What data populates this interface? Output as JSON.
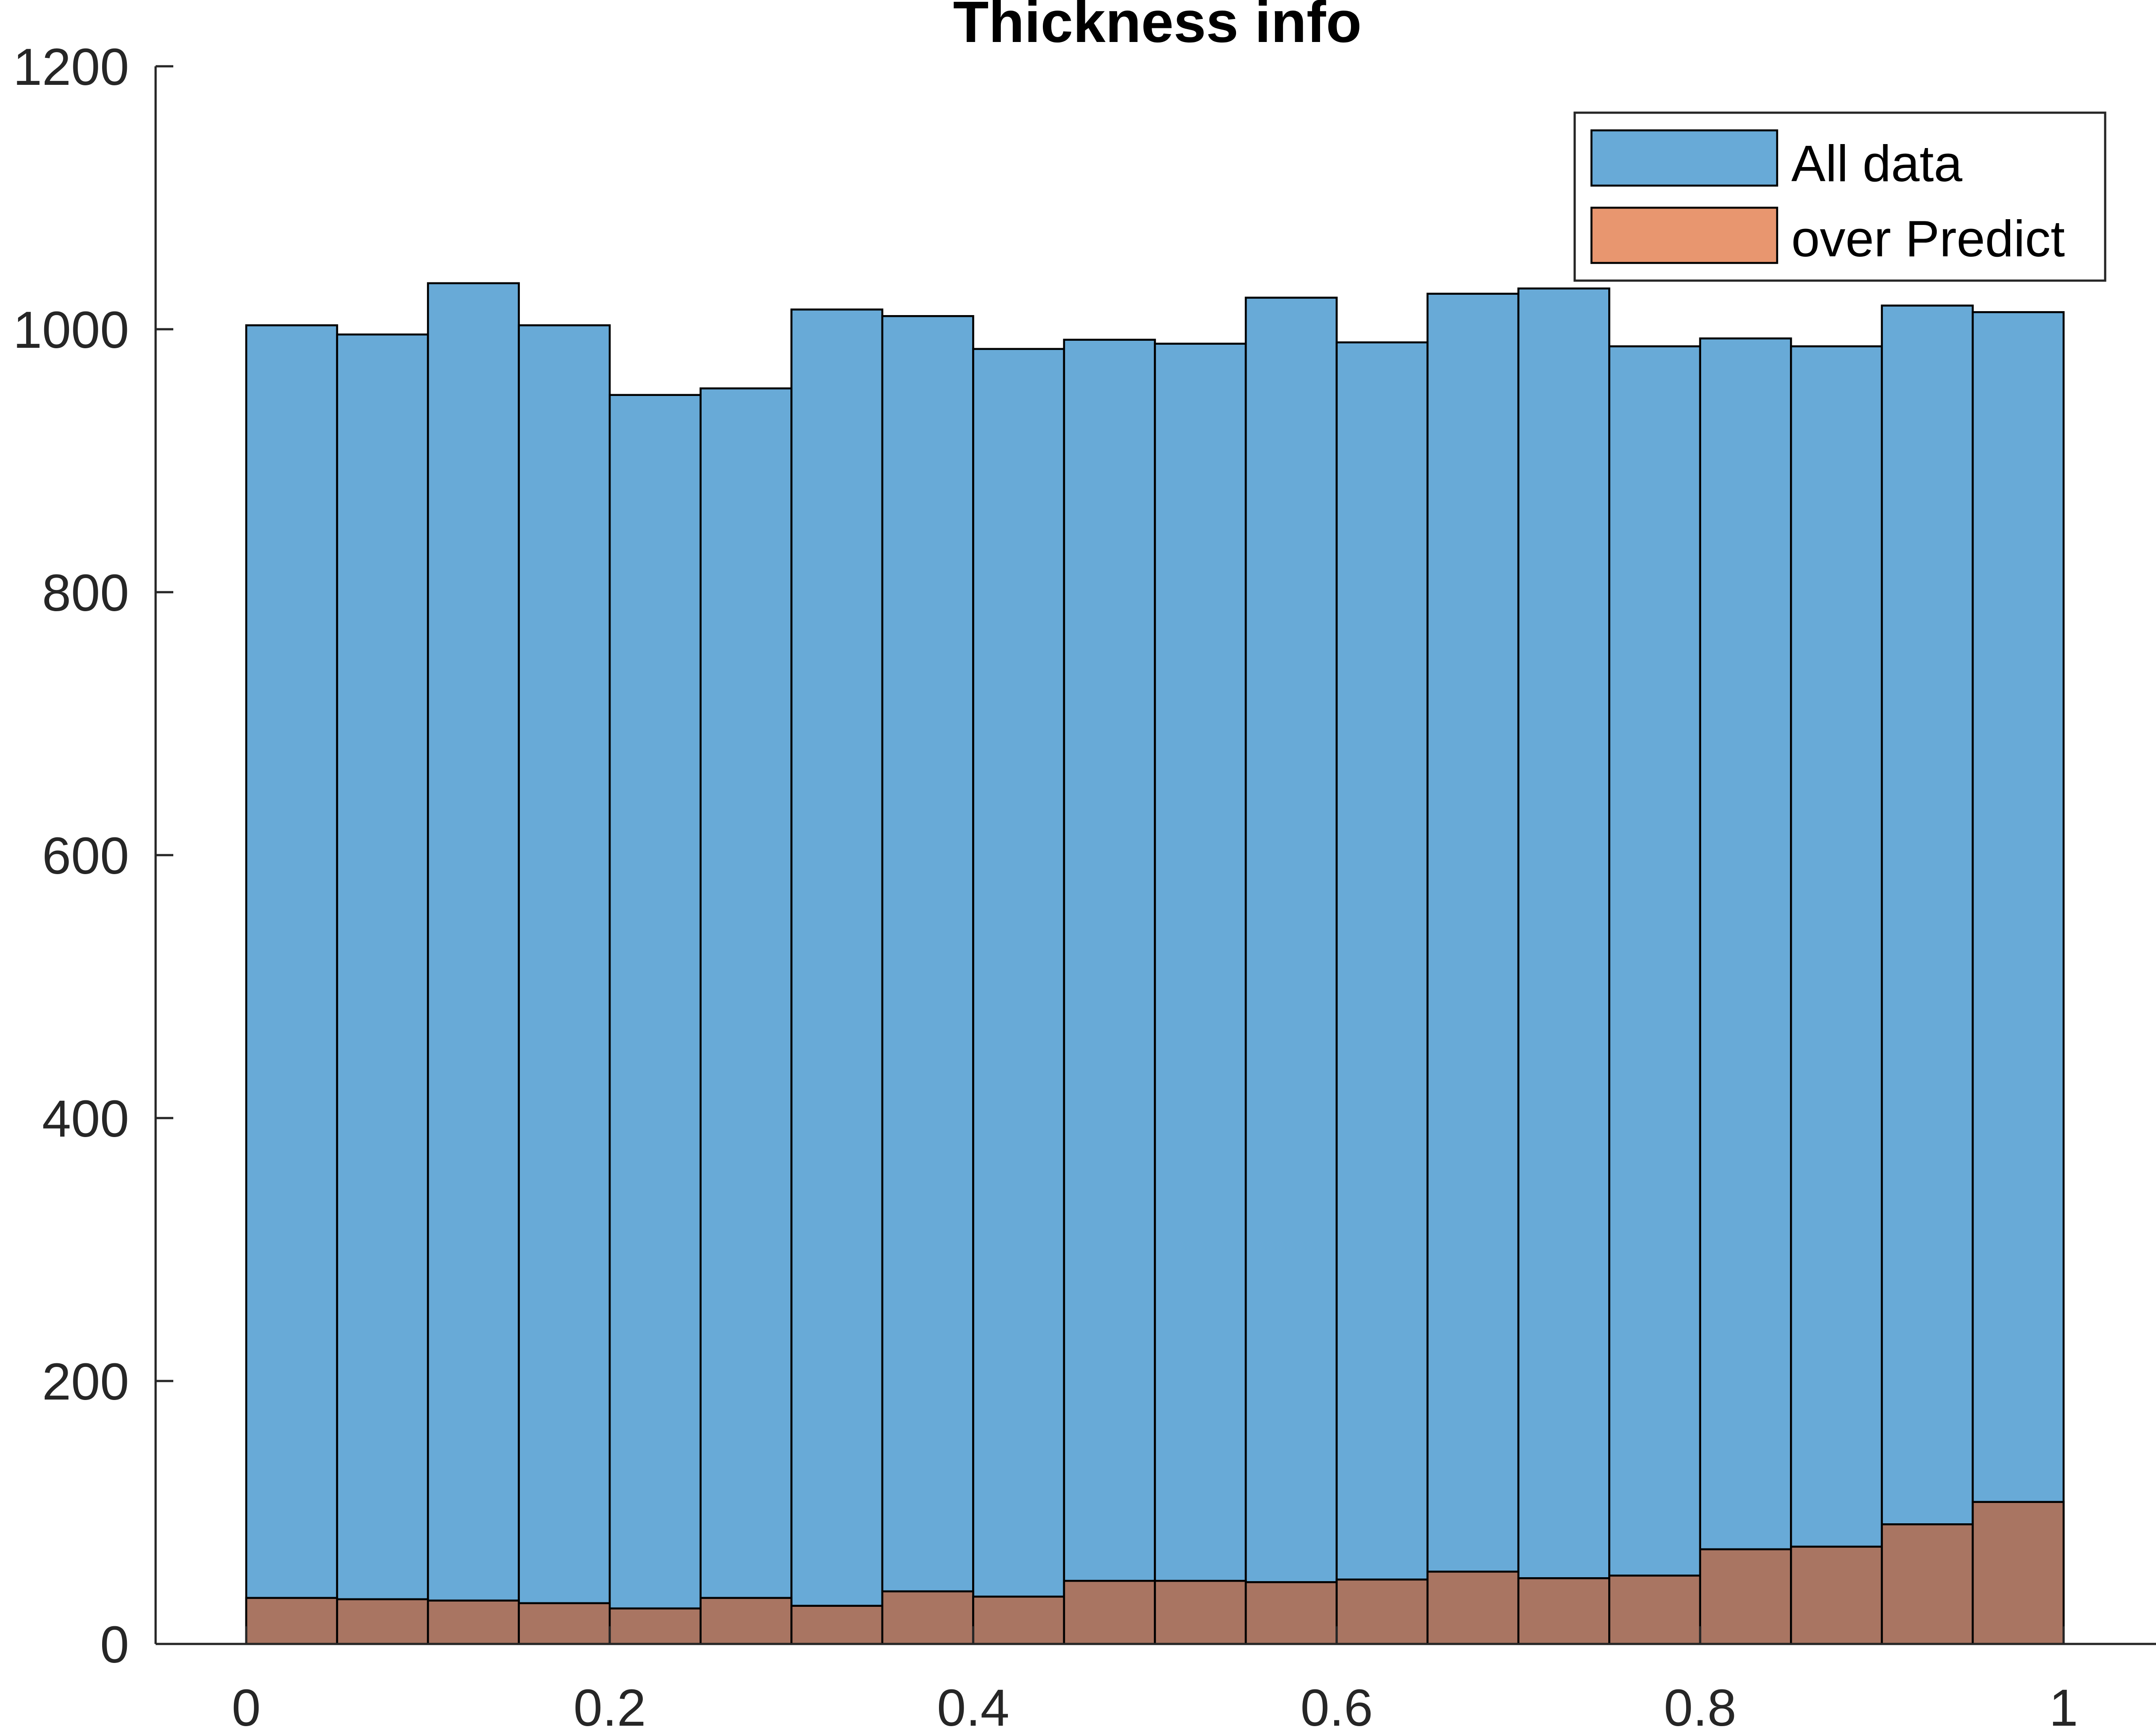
{
  "chart_data": {
    "type": "bar",
    "title": "Thickness info",
    "xlabel": "",
    "ylabel": "",
    "xlim": [
      -0.1,
      1.02
    ],
    "ylim": [
      0,
      1200
    ],
    "bin_edges": [
      0,
      0.05,
      0.1,
      0.15,
      0.2,
      0.25,
      0.3,
      0.35,
      0.4,
      0.45,
      0.5,
      0.55,
      0.6,
      0.65,
      0.7,
      0.75,
      0.8,
      0.85,
      0.9,
      0.95,
      1.0
    ],
    "x_ticks": [
      {
        "value": 0,
        "label": "0"
      },
      {
        "value": 0.2,
        "label": "0.2"
      },
      {
        "value": 0.4,
        "label": "0.4"
      },
      {
        "value": 0.6,
        "label": "0.6"
      },
      {
        "value": 0.8,
        "label": "0.8"
      },
      {
        "value": 1,
        "label": "1"
      }
    ],
    "y_ticks": [
      {
        "value": 0,
        "label": "0"
      },
      {
        "value": 200,
        "label": "200"
      },
      {
        "value": 400,
        "label": "400"
      },
      {
        "value": 600,
        "label": "600"
      },
      {
        "value": 800,
        "label": "800"
      },
      {
        "value": 1000,
        "label": "1000"
      },
      {
        "value": 1200,
        "label": "1200"
      }
    ],
    "grid": false,
    "legend_position": "top-right",
    "series": [
      {
        "name": "All data",
        "color": "#68AAD7",
        "values": [
          1003,
          996,
          1035,
          1003,
          950,
          955,
          1015,
          1010,
          985,
          992,
          989,
          1024,
          990,
          1027,
          1031,
          987,
          993,
          987,
          1018,
          1013
        ]
      },
      {
        "name": "over Predict",
        "color": "#A97562",
        "legend_color": "#E8966F",
        "values": [
          35,
          34,
          33,
          31,
          27,
          35,
          29,
          40,
          36,
          48,
          48,
          47,
          49,
          55,
          50,
          52,
          72,
          74,
          91,
          108
        ]
      }
    ]
  }
}
